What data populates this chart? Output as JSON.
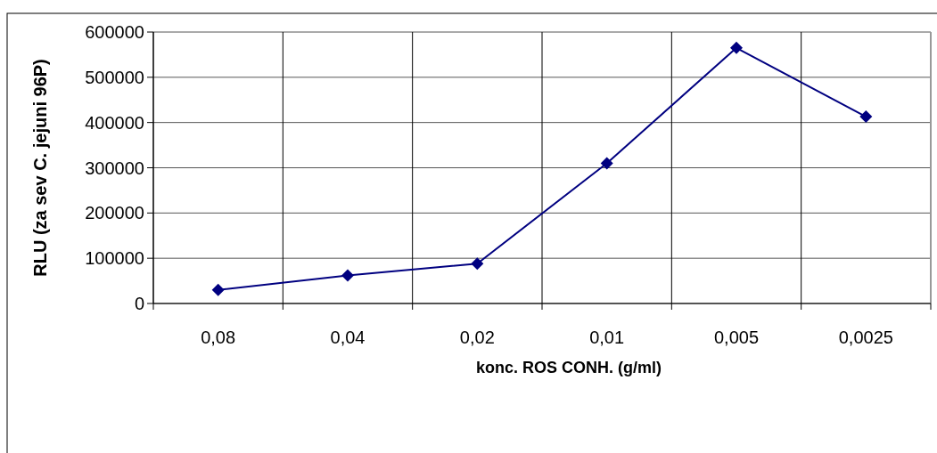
{
  "chart_data": {
    "type": "line",
    "xlabel": "konc. ROS CONH. (g/ml)",
    "ylabel": "RLU (za sev C. jejuni 96P)",
    "categories": [
      "0,08",
      "0,04",
      "0,02",
      "0,01",
      "0,005",
      "0,0025"
    ],
    "series": [
      {
        "color": "#000080",
        "values": [
          30000,
          62000,
          88000,
          310000,
          565000,
          413000
        ]
      }
    ],
    "ylim": [
      0,
      600000
    ],
    "yticks": [
      0,
      100000,
      200000,
      300000,
      400000,
      500000,
      600000
    ],
    "grid": true,
    "marker": "diamond",
    "line_style": "solid"
  }
}
